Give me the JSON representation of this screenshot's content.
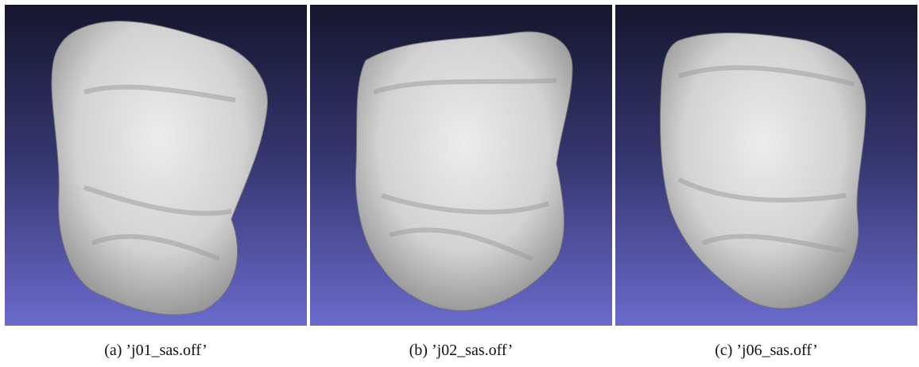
{
  "figure": {
    "panels": [
      {
        "caption": "(a) ’j01_sas.off’"
      },
      {
        "caption": "(b) ’j02_sas.off’"
      },
      {
        "caption": "(c) ’j06_sas.off’"
      }
    ]
  }
}
